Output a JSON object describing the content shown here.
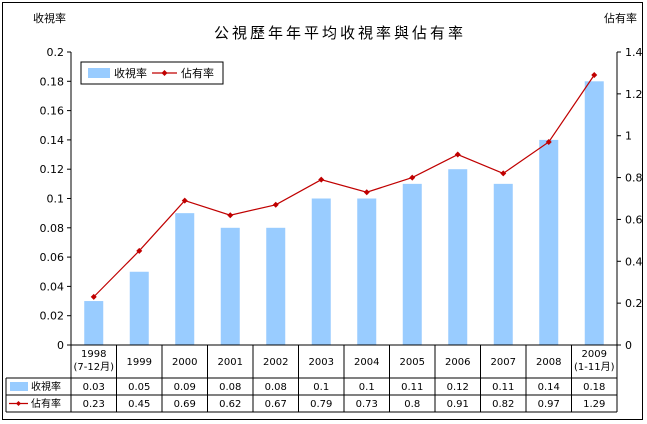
{
  "chart_data": {
    "type": "bar",
    "title": "公視歷年年平均收視率與佔有率",
    "ylabel": "收視率",
    "y2label": "佔有率",
    "ylim": [
      0,
      0.2
    ],
    "y2lim": [
      0,
      1.4
    ],
    "yticks": [
      "0",
      "0.02",
      "0.04",
      "0.06",
      "0.08",
      "0.1",
      "0.12",
      "0.14",
      "0.16",
      "0.18",
      "0.2"
    ],
    "y2ticks": [
      "0",
      "0.2",
      "0.4",
      "0.6",
      "0.8",
      "1",
      "1.2",
      "1.4"
    ],
    "categories": [
      {
        "l1": "1998",
        "l2": "(7-12月)"
      },
      {
        "l1": "1999",
        "l2": ""
      },
      {
        "l1": "2000",
        "l2": ""
      },
      {
        "l1": "2001",
        "l2": ""
      },
      {
        "l1": "2002",
        "l2": ""
      },
      {
        "l1": "2003",
        "l2": ""
      },
      {
        "l1": "2004",
        "l2": ""
      },
      {
        "l1": "2005",
        "l2": ""
      },
      {
        "l1": "2006",
        "l2": ""
      },
      {
        "l1": "2007",
        "l2": ""
      },
      {
        "l1": "2008",
        "l2": ""
      },
      {
        "l1": "2009",
        "l2": "(1-11月)"
      }
    ],
    "series": [
      {
        "name": "收視率",
        "type": "bar",
        "axis": "left",
        "color": "#99ccff",
        "values": [
          0.03,
          0.05,
          0.09,
          0.08,
          0.08,
          0.1,
          0.1,
          0.11,
          0.12,
          0.11,
          0.14,
          0.18
        ]
      },
      {
        "name": "佔有率",
        "type": "line",
        "axis": "right",
        "color": "#c00000",
        "values": [
          0.23,
          0.45,
          0.69,
          0.62,
          0.67,
          0.79,
          0.73,
          0.8,
          0.91,
          0.82,
          0.97,
          1.29
        ]
      }
    ],
    "legend_position": "top-left",
    "grid": false
  }
}
